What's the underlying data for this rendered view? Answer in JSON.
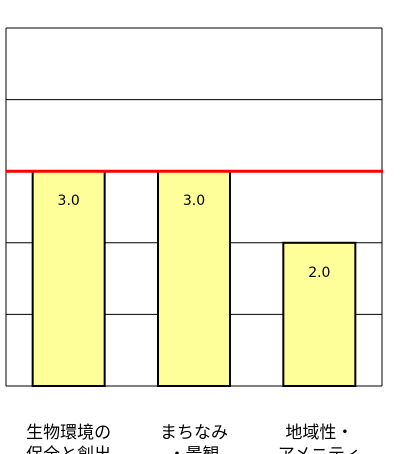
{
  "chart_data": {
    "type": "bar",
    "categories": [
      "生物環境の保全と創出",
      "まちなみ・景観",
      "地域性・アメニティ"
    ],
    "category_lines": [
      [
        "生物環境の",
        "保全と創出"
      ],
      [
        "まちなみ",
        "・景観"
      ],
      [
        "地域性・",
        "アメニティ"
      ]
    ],
    "values": [
      3.0,
      3.0,
      2.0
    ],
    "value_labels": [
      "3.0",
      "3.0",
      "2.0"
    ],
    "ylim": [
      0,
      5
    ],
    "grid": true,
    "reference_line": {
      "value": 3.0,
      "color": "#ff0000"
    },
    "bar_color": "#ffff99",
    "bar_border_color": "#000000",
    "title": "",
    "xlabel": "",
    "ylabel": ""
  }
}
